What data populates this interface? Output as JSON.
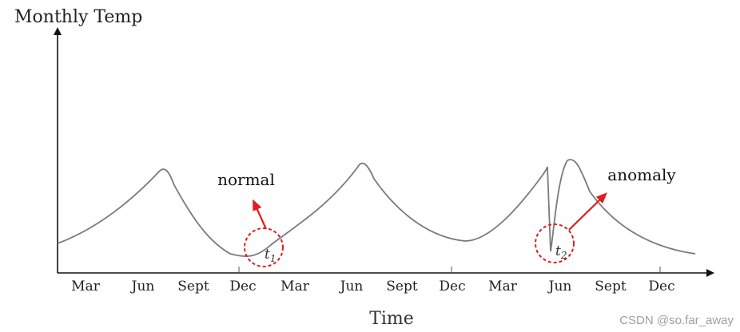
{
  "chart_data": {
    "type": "line",
    "ylabel": "Monthly Temp",
    "xlabel": "Time",
    "x_tick_labels": [
      "Mar",
      "Jun",
      "Sept",
      "Dec",
      "Mar",
      "Jun",
      "Sept",
      "Dec",
      "Mar",
      "Jun",
      "Sept",
      "Dec"
    ],
    "grid": false,
    "legend": "none",
    "line_color": "#777777",
    "annotation_color": "#e11d1d",
    "annotations": [
      {
        "id": "t1",
        "label": "normal",
        "point_main": "t",
        "point_sub": "1"
      },
      {
        "id": "t2",
        "label": "anomaly",
        "point_main": "t",
        "point_sub": "2"
      }
    ]
  },
  "watermark": "CSDN @so.far_away"
}
